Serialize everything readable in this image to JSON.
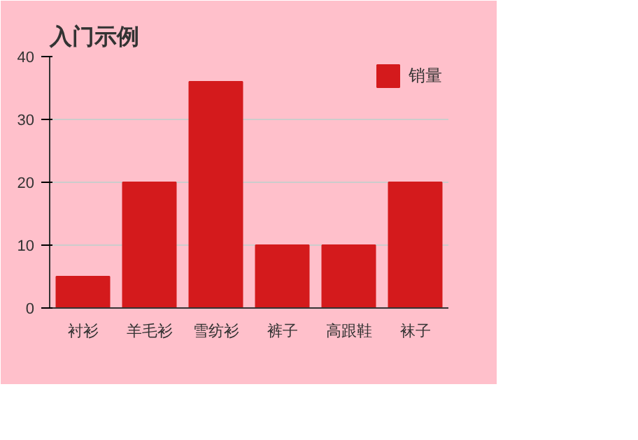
{
  "chart_data": {
    "type": "bar",
    "title": "入门示例",
    "categories": [
      "衬衫",
      "羊毛衫",
      "雪纺衫",
      "裤子",
      "高跟鞋",
      "袜子"
    ],
    "series": [
      {
        "name": "销量",
        "color": "#d41a1c",
        "values": [
          5,
          20,
          36,
          10,
          10,
          20
        ]
      }
    ],
    "ylim": [
      0,
      40
    ],
    "yticks": [
      0,
      10,
      20,
      30,
      40
    ],
    "grid": "y",
    "legend": "top"
  }
}
